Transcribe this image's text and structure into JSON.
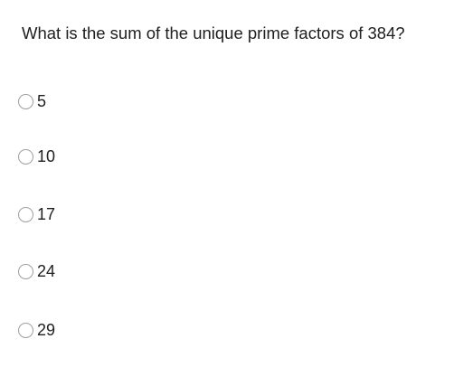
{
  "question": {
    "text": "What is the sum of the unique prime factors of 384?"
  },
  "options": [
    {
      "label": "5",
      "selected": false
    },
    {
      "label": "10",
      "selected": false
    },
    {
      "label": "17",
      "selected": false
    },
    {
      "label": "24",
      "selected": false
    },
    {
      "label": "29",
      "selected": false
    }
  ]
}
